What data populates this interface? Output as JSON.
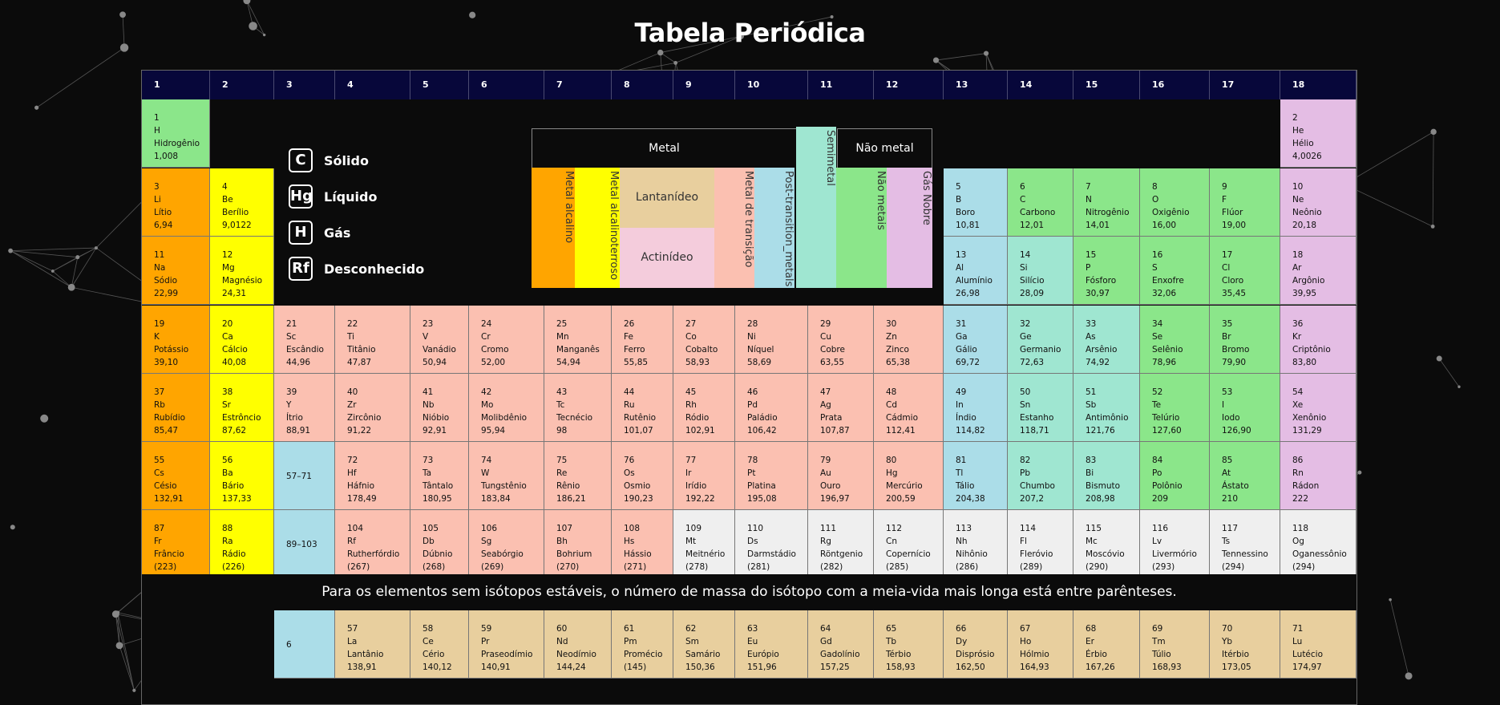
{
  "page_title": "Tabela Periódica",
  "groups": [
    "1",
    "2",
    "3",
    "4",
    "5",
    "6",
    "7",
    "8",
    "9",
    "10",
    "11",
    "12",
    "13",
    "14",
    "15",
    "16",
    "17",
    "18"
  ],
  "legend": [
    {
      "symbol": "C",
      "label": "Sólido"
    },
    {
      "symbol": "Hg",
      "label": "Líquido"
    },
    {
      "symbol": "H",
      "label": "Gás"
    },
    {
      "symbol": "Rf",
      "label": "Desconhecido"
    }
  ],
  "categories": {
    "metal_header": "Metal",
    "nonmetal_header": "Não metal",
    "alkali": "Metal alcalino",
    "alkaline_earth": "Metal alcalinoterroso",
    "lanthanide": "Lantanídeo",
    "actinide": "Actinídeo",
    "transition": "Metal de transição",
    "post_transition": "Post-transition_metals",
    "metalloid": "Semimetal",
    "nonmetals": "Não metais",
    "noble_gas": "Gás Nobre"
  },
  "colors": {
    "alkali": "#ffa500",
    "alkaline_earth": "#ffff00",
    "transition": "#fbc0b1",
    "post_transition": "#abdde8",
    "metalloid": "#9fe6d1",
    "nonmetal": "#8be68a",
    "noble_gas": "#e4bde4",
    "unknown": "#efefef",
    "lanthanide": "#e8cf9e",
    "actinide": "#f4ccdc",
    "header": "#07073a"
  },
  "note": "Para os elementos sem isótopos estáveis, o número de massa do isótopo com a meia-vida mais longa está entre parênteses.",
  "elements": [
    {
      "n": "1",
      "s": "H",
      "name": "Hidrogênio",
      "m": "1,008",
      "row": 1,
      "col": 1,
      "c": "nm"
    },
    {
      "n": "2",
      "s": "He",
      "name": "Hélio",
      "m": "4,0026",
      "row": 1,
      "col": 18,
      "c": "ng"
    },
    {
      "n": "3",
      "s": "Li",
      "name": "Lítio",
      "m": "6,94",
      "row": 2,
      "col": 1,
      "c": "alk"
    },
    {
      "n": "4",
      "s": "Be",
      "name": "Berílio",
      "m": "9,0122",
      "row": 2,
      "col": 2,
      "c": "ale"
    },
    {
      "n": "5",
      "s": "B",
      "name": "Boro",
      "m": "10,81",
      "row": 2,
      "col": 13,
      "c": "ptm"
    },
    {
      "n": "6",
      "s": "C",
      "name": "Carbono",
      "m": "12,01",
      "row": 2,
      "col": 14,
      "c": "nm"
    },
    {
      "n": "7",
      "s": "N",
      "name": "Nitrogênio",
      "m": "14,01",
      "row": 2,
      "col": 15,
      "c": "nm"
    },
    {
      "n": "8",
      "s": "O",
      "name": "Oxigênio",
      "m": "16,00",
      "row": 2,
      "col": 16,
      "c": "nm"
    },
    {
      "n": "9",
      "s": "F",
      "name": "Flúor",
      "m": "19,00",
      "row": 2,
      "col": 17,
      "c": "nm"
    },
    {
      "n": "10",
      "s": "Ne",
      "name": "Neônio",
      "m": "20,18",
      "row": 2,
      "col": 18,
      "c": "ng"
    },
    {
      "n": "11",
      "s": "Na",
      "name": "Sódio",
      "m": "22,99",
      "row": 3,
      "col": 1,
      "c": "alk"
    },
    {
      "n": "12",
      "s": "Mg",
      "name": "Magnésio",
      "m": "24,31",
      "row": 3,
      "col": 2,
      "c": "ale"
    },
    {
      "n": "13",
      "s": "Al",
      "name": "Alumínio",
      "m": "26,98",
      "row": 3,
      "col": 13,
      "c": "ptm"
    },
    {
      "n": "14",
      "s": "Si",
      "name": "Silício",
      "m": "28,09",
      "row": 3,
      "col": 14,
      "c": "met"
    },
    {
      "n": "15",
      "s": "P",
      "name": "Fósforo",
      "m": "30,97",
      "row": 3,
      "col": 15,
      "c": "nm"
    },
    {
      "n": "16",
      "s": "S",
      "name": "Enxofre",
      "m": "32,06",
      "row": 3,
      "col": 16,
      "c": "nm"
    },
    {
      "n": "17",
      "s": "Cl",
      "name": "Cloro",
      "m": "35,45",
      "row": 3,
      "col": 17,
      "c": "nm"
    },
    {
      "n": "18",
      "s": "Ar",
      "name": "Argônio",
      "m": "39,95",
      "row": 3,
      "col": 18,
      "c": "ng"
    },
    {
      "n": "19",
      "s": "K",
      "name": "Potássio",
      "m": "39,10",
      "row": 4,
      "col": 1,
      "c": "alk"
    },
    {
      "n": "20",
      "s": "Ca",
      "name": "Cálcio",
      "m": "40,08",
      "row": 4,
      "col": 2,
      "c": "ale"
    },
    {
      "n": "21",
      "s": "Sc",
      "name": "Escândio",
      "m": "44,96",
      "row": 4,
      "col": 3,
      "c": "tm"
    },
    {
      "n": "22",
      "s": "Ti",
      "name": "Titânio",
      "m": "47,87",
      "row": 4,
      "col": 4,
      "c": "tm"
    },
    {
      "n": "23",
      "s": "V",
      "name": "Vanádio",
      "m": "50,94",
      "row": 4,
      "col": 5,
      "c": "tm"
    },
    {
      "n": "24",
      "s": "Cr",
      "name": "Cromo",
      "m": "52,00",
      "row": 4,
      "col": 6,
      "c": "tm"
    },
    {
      "n": "25",
      "s": "Mn",
      "name": "Manganês",
      "m": "54,94",
      "row": 4,
      "col": 7,
      "c": "tm"
    },
    {
      "n": "26",
      "s": "Fe",
      "name": "Ferro",
      "m": "55,85",
      "row": 4,
      "col": 8,
      "c": "tm"
    },
    {
      "n": "27",
      "s": "Co",
      "name": "Cobalto",
      "m": "58,93",
      "row": 4,
      "col": 9,
      "c": "tm"
    },
    {
      "n": "28",
      "s": "Ni",
      "name": "Níquel",
      "m": "58,69",
      "row": 4,
      "col": 10,
      "c": "tm"
    },
    {
      "n": "29",
      "s": "Cu",
      "name": "Cobre",
      "m": "63,55",
      "row": 4,
      "col": 11,
      "c": "tm"
    },
    {
      "n": "30",
      "s": "Zn",
      "name": "Zinco",
      "m": "65,38",
      "row": 4,
      "col": 12,
      "c": "tm"
    },
    {
      "n": "31",
      "s": "Ga",
      "name": "Gálio",
      "m": "69,72",
      "row": 4,
      "col": 13,
      "c": "ptm"
    },
    {
      "n": "32",
      "s": "Ge",
      "name": "Germanio",
      "m": "72,63",
      "row": 4,
      "col": 14,
      "c": "met"
    },
    {
      "n": "33",
      "s": "As",
      "name": "Arsênio",
      "m": "74,92",
      "row": 4,
      "col": 15,
      "c": "met"
    },
    {
      "n": "34",
      "s": "Se",
      "name": "Selênio",
      "m": "78,96",
      "row": 4,
      "col": 16,
      "c": "nm"
    },
    {
      "n": "35",
      "s": "Br",
      "name": "Bromo",
      "m": "79,90",
      "row": 4,
      "col": 17,
      "c": "nm"
    },
    {
      "n": "36",
      "s": "Kr",
      "name": "Criptônio",
      "m": "83,80",
      "row": 4,
      "col": 18,
      "c": "ng"
    },
    {
      "n": "37",
      "s": "Rb",
      "name": "Rubídio",
      "m": "85,47",
      "row": 5,
      "col": 1,
      "c": "alk"
    },
    {
      "n": "38",
      "s": "Sr",
      "name": "Estrôncio",
      "m": "87,62",
      "row": 5,
      "col": 2,
      "c": "ale"
    },
    {
      "n": "39",
      "s": "Y",
      "name": "Ítrio",
      "m": "88,91",
      "row": 5,
      "col": 3,
      "c": "tm"
    },
    {
      "n": "40",
      "s": "Zr",
      "name": "Zircônio",
      "m": "91,22",
      "row": 5,
      "col": 4,
      "c": "tm"
    },
    {
      "n": "41",
      "s": "Nb",
      "name": "Nióbio",
      "m": "92,91",
      "row": 5,
      "col": 5,
      "c": "tm"
    },
    {
      "n": "42",
      "s": "Mo",
      "name": "Molibdênio",
      "m": "95,94",
      "row": 5,
      "col": 6,
      "c": "tm"
    },
    {
      "n": "43",
      "s": "Tc",
      "name": "Tecnécio",
      "m": "98",
      "row": 5,
      "col": 7,
      "c": "tm"
    },
    {
      "n": "44",
      "s": "Ru",
      "name": "Rutênio",
      "m": "101,07",
      "row": 5,
      "col": 8,
      "c": "tm"
    },
    {
      "n": "45",
      "s": "Rh",
      "name": "Ródio",
      "m": "102,91",
      "row": 5,
      "col": 9,
      "c": "tm"
    },
    {
      "n": "46",
      "s": "Pd",
      "name": "Paládio",
      "m": "106,42",
      "row": 5,
      "col": 10,
      "c": "tm"
    },
    {
      "n": "47",
      "s": "Ag",
      "name": "Prata",
      "m": "107,87",
      "row": 5,
      "col": 11,
      "c": "tm"
    },
    {
      "n": "48",
      "s": "Cd",
      "name": "Cádmio",
      "m": "112,41",
      "row": 5,
      "col": 12,
      "c": "tm"
    },
    {
      "n": "49",
      "s": "In",
      "name": "Índio",
      "m": "114,82",
      "row": 5,
      "col": 13,
      "c": "ptm"
    },
    {
      "n": "50",
      "s": "Sn",
      "name": "Estanho",
      "m": "118,71",
      "row": 5,
      "col": 14,
      "c": "met"
    },
    {
      "n": "51",
      "s": "Sb",
      "name": "Antimônio",
      "m": "121,76",
      "row": 5,
      "col": 15,
      "c": "met"
    },
    {
      "n": "52",
      "s": "Te",
      "name": "Telúrio",
      "m": "127,60",
      "row": 5,
      "col": 16,
      "c": "nm"
    },
    {
      "n": "53",
      "s": "I",
      "name": "Iodo",
      "m": "126,90",
      "row": 5,
      "col": 17,
      "c": "nm"
    },
    {
      "n": "54",
      "s": "Xe",
      "name": "Xenônio",
      "m": "131,29",
      "row": 5,
      "col": 18,
      "c": "ng"
    },
    {
      "n": "55",
      "s": "Cs",
      "name": "Césio",
      "m": "132,91",
      "row": 6,
      "col": 1,
      "c": "alk"
    },
    {
      "n": "56",
      "s": "Ba",
      "name": "Bário",
      "m": "137,33",
      "row": 6,
      "col": 2,
      "c": "ale"
    },
    {
      "n": "72",
      "s": "Hf",
      "name": "Háfnio",
      "m": "178,49",
      "row": 6,
      "col": 4,
      "c": "tm"
    },
    {
      "n": "73",
      "s": "Ta",
      "name": "Tântalo",
      "m": "180,95",
      "row": 6,
      "col": 5,
      "c": "tm"
    },
    {
      "n": "74",
      "s": "W",
      "name": "Tungstênio",
      "m": "183,84",
      "row": 6,
      "col": 6,
      "c": "tm"
    },
    {
      "n": "75",
      "s": "Re",
      "name": "Rênio",
      "m": "186,21",
      "row": 6,
      "col": 7,
      "c": "tm"
    },
    {
      "n": "76",
      "s": "Os",
      "name": "Osmio",
      "m": "190,23",
      "row": 6,
      "col": 8,
      "c": "tm"
    },
    {
      "n": "77",
      "s": "Ir",
      "name": "Irídio",
      "m": "192,22",
      "row": 6,
      "col": 9,
      "c": "tm"
    },
    {
      "n": "78",
      "s": "Pt",
      "name": "Platina",
      "m": "195,08",
      "row": 6,
      "col": 10,
      "c": "tm"
    },
    {
      "n": "79",
      "s": "Au",
      "name": "Ouro",
      "m": "196,97",
      "row": 6,
      "col": 11,
      "c": "tm"
    },
    {
      "n": "80",
      "s": "Hg",
      "name": "Mercúrio",
      "m": "200,59",
      "row": 6,
      "col": 12,
      "c": "tm"
    },
    {
      "n": "81",
      "s": "Tl",
      "name": "Tálio",
      "m": "204,38",
      "row": 6,
      "col": 13,
      "c": "ptm"
    },
    {
      "n": "82",
      "s": "Pb",
      "name": "Chumbo",
      "m": "207,2",
      "row": 6,
      "col": 14,
      "c": "met"
    },
    {
      "n": "83",
      "s": "Bi",
      "name": "Bismuto",
      "m": "208,98",
      "row": 6,
      "col": 15,
      "c": "met"
    },
    {
      "n": "84",
      "s": "Po",
      "name": "Polônio",
      "m": "209",
      "row": 6,
      "col": 16,
      "c": "nm"
    },
    {
      "n": "85",
      "s": "At",
      "name": "Ástato",
      "m": "210",
      "row": 6,
      "col": 17,
      "c": "nm"
    },
    {
      "n": "86",
      "s": "Rn",
      "name": "Rádon",
      "m": "222",
      "row": 6,
      "col": 18,
      "c": "ng"
    },
    {
      "n": "87",
      "s": "Fr",
      "name": "Frâncio",
      "m": "(223)",
      "row": 7,
      "col": 1,
      "c": "alk"
    },
    {
      "n": "88",
      "s": "Ra",
      "name": "Rádio",
      "m": "(226)",
      "row": 7,
      "col": 2,
      "c": "ale"
    },
    {
      "n": "104",
      "s": "Rf",
      "name": "Rutherfórdio",
      "m": "(267)",
      "row": 7,
      "col": 4,
      "c": "tm"
    },
    {
      "n": "105",
      "s": "Db",
      "name": "Dúbnio",
      "m": "(268)",
      "row": 7,
      "col": 5,
      "c": "tm"
    },
    {
      "n": "106",
      "s": "Sg",
      "name": "Seabórgio",
      "m": "(269)",
      "row": 7,
      "col": 6,
      "c": "tm"
    },
    {
      "n": "107",
      "s": "Bh",
      "name": "Bohrium",
      "m": "(270)",
      "row": 7,
      "col": 7,
      "c": "tm"
    },
    {
      "n": "108",
      "s": "Hs",
      "name": "Hássio",
      "m": "(271)",
      "row": 7,
      "col": 8,
      "c": "tm"
    },
    {
      "n": "109",
      "s": "Mt",
      "name": "Meitnério",
      "m": "(278)",
      "row": 7,
      "col": 9,
      "c": "unk"
    },
    {
      "n": "110",
      "s": "Ds",
      "name": "Darmstádio",
      "m": "(281)",
      "row": 7,
      "col": 10,
      "c": "unk"
    },
    {
      "n": "111",
      "s": "Rg",
      "name": "Röntgenio",
      "m": "(282)",
      "row": 7,
      "col": 11,
      "c": "unk"
    },
    {
      "n": "112",
      "s": "Cn",
      "name": "Copernício",
      "m": "(285)",
      "row": 7,
      "col": 12,
      "c": "unk"
    },
    {
      "n": "113",
      "s": "Nh",
      "name": "Nihônio",
      "m": "(286)",
      "row": 7,
      "col": 13,
      "c": "unk"
    },
    {
      "n": "114",
      "s": "Fl",
      "name": "Fleróvio",
      "m": "(289)",
      "row": 7,
      "col": 14,
      "c": "unk"
    },
    {
      "n": "115",
      "s": "Mc",
      "name": "Moscóvio",
      "m": "(290)",
      "row": 7,
      "col": 15,
      "c": "unk"
    },
    {
      "n": "116",
      "s": "Lv",
      "name": "Livermório",
      "m": "(293)",
      "row": 7,
      "col": 16,
      "c": "unk"
    },
    {
      "n": "117",
      "s": "Ts",
      "name": "Tennessino",
      "m": "(294)",
      "row": 7,
      "col": 17,
      "c": "unk"
    },
    {
      "n": "118",
      "s": "Og",
      "name": "Oganessônio",
      "m": "(294)",
      "row": 7,
      "col": 18,
      "c": "unk"
    },
    {
      "n": "57",
      "s": "La",
      "name": "Lantânio",
      "m": "138,91",
      "row": 9,
      "col": 4,
      "c": "lan"
    },
    {
      "n": "58",
      "s": "Ce",
      "name": "Cério",
      "m": "140,12",
      "row": 9,
      "col": 5,
      "c": "lan"
    },
    {
      "n": "59",
      "s": "Pr",
      "name": "Praseodímio",
      "m": "140,91",
      "row": 9,
      "col": 6,
      "c": "lan"
    },
    {
      "n": "60",
      "s": "Nd",
      "name": "Neodímio",
      "m": "144,24",
      "row": 9,
      "col": 7,
      "c": "lan"
    },
    {
      "n": "61",
      "s": "Pm",
      "name": "Promécio",
      "m": "(145)",
      "row": 9,
      "col": 8,
      "c": "lan"
    },
    {
      "n": "62",
      "s": "Sm",
      "name": "Samário",
      "m": "150,36",
      "row": 9,
      "col": 9,
      "c": "lan"
    },
    {
      "n": "63",
      "s": "Eu",
      "name": "Európio",
      "m": "151,96",
      "row": 9,
      "col": 10,
      "c": "lan"
    },
    {
      "n": "64",
      "s": "Gd",
      "name": "Gadolínio",
      "m": "157,25",
      "row": 9,
      "col": 11,
      "c": "lan"
    },
    {
      "n": "65",
      "s": "Tb",
      "name": "Térbio",
      "m": "158,93",
      "row": 9,
      "col": 12,
      "c": "lan"
    },
    {
      "n": "66",
      "s": "Dy",
      "name": "Disprósio",
      "m": "162,50",
      "row": 9,
      "col": 13,
      "c": "lan"
    },
    {
      "n": "67",
      "s": "Ho",
      "name": "Hólmio",
      "m": "164,93",
      "row": 9,
      "col": 14,
      "c": "lan"
    },
    {
      "n": "68",
      "s": "Er",
      "name": "Érbio",
      "m": "167,26",
      "row": 9,
      "col": 15,
      "c": "lan"
    },
    {
      "n": "69",
      "s": "Tm",
      "name": "Túlio",
      "m": "168,93",
      "row": 9,
      "col": 16,
      "c": "lan"
    },
    {
      "n": "70",
      "s": "Yb",
      "name": "Itérbio",
      "m": "173,05",
      "row": 9,
      "col": 17,
      "c": "lan"
    },
    {
      "n": "71",
      "s": "Lu",
      "name": "Lutécio",
      "m": "174,97",
      "row": 9,
      "col": 18,
      "c": "lan"
    }
  ],
  "refs": [
    {
      "text": "57–71",
      "row": 6,
      "col": 3,
      "c": "ptm"
    },
    {
      "text": "89–103",
      "row": 7,
      "col": 3,
      "c": "ptm"
    },
    {
      "text": "6",
      "row": 9,
      "col": 3,
      "c": "ptm"
    }
  ]
}
